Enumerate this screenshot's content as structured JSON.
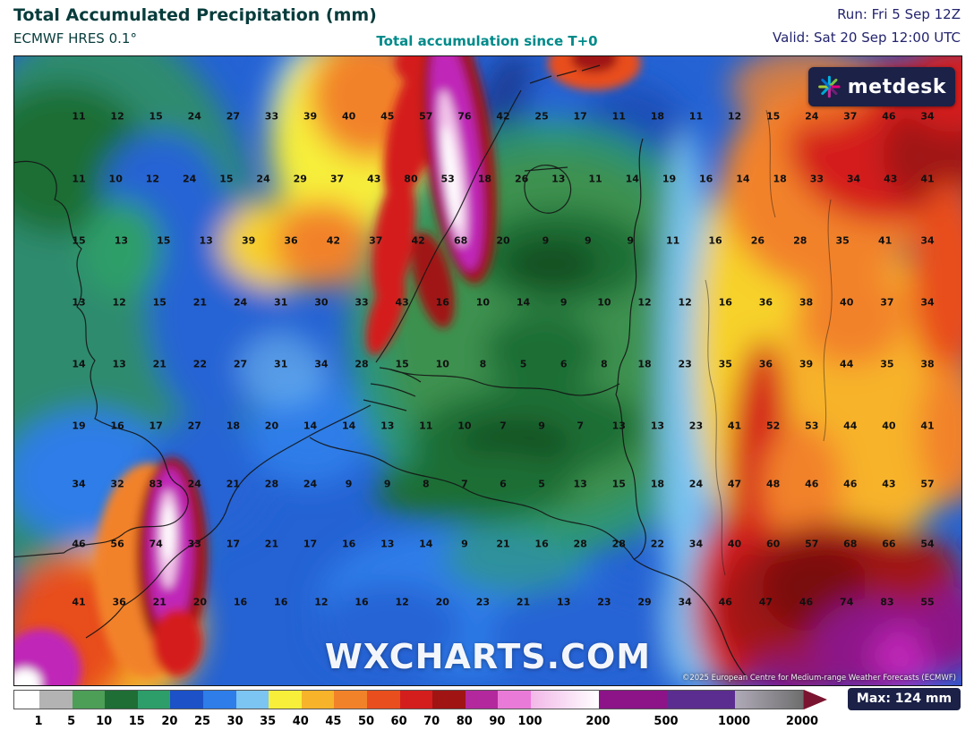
{
  "header": {
    "title": "Total Accumulated Precipitation (mm)",
    "model": "ECMWF HRES 0.1°",
    "subtitle": "Total accumulation since T+0",
    "run": "Run: Fri 5 Sep 12Z",
    "valid": "Valid: Sat 20 Sep 12:00 UTC"
  },
  "branding": {
    "logo_text": "metdesk",
    "watermark": "WXCHARTS.COM",
    "copyright": "©2025 European Centre for Medium-range Weather Forecasts (ECMWF)"
  },
  "colors": {
    "title_teal": "#083c3c",
    "subtitle_teal": "#008a8a",
    "run_navy": "#23246e",
    "badge_navy": "#1b2147",
    "map_base_blue": "#2563d4"
  },
  "chart_data": {
    "type": "heatmap",
    "title": "Total Accumulated Precipitation (mm)",
    "units": "mm",
    "model": "ECMWF HRES 0.1°",
    "run": "Fri 5 Sep 12Z",
    "valid_time": "Sat 20 Sep 12:00 UTC",
    "max_value_mm": 124,
    "grid_rows": [
      [
        11,
        12,
        15,
        24,
        27,
        33,
        39,
        40,
        45,
        57,
        76,
        42,
        25,
        17,
        11,
        18,
        11,
        12,
        15,
        24,
        37,
        46,
        34
      ],
      [
        11,
        10,
        12,
        24,
        15,
        24,
        29,
        37,
        43,
        80,
        53,
        18,
        26,
        13,
        11,
        14,
        19,
        16,
        14,
        18,
        33,
        34,
        43,
        41
      ],
      [
        15,
        13,
        15,
        13,
        39,
        36,
        42,
        37,
        42,
        68,
        20,
        9,
        9,
        9,
        11,
        16,
        26,
        28,
        35,
        41,
        34
      ],
      [
        13,
        12,
        15,
        21,
        24,
        31,
        30,
        33,
        43,
        16,
        10,
        14,
        9,
        10,
        12,
        12,
        16,
        36,
        38,
        40,
        37,
        34
      ],
      [
        14,
        13,
        21,
        22,
        27,
        31,
        34,
        28,
        15,
        10,
        8,
        5,
        6,
        8,
        18,
        23,
        35,
        36,
        39,
        44,
        35,
        38
      ],
      [
        19,
        16,
        17,
        27,
        18,
        20,
        14,
        14,
        13,
        11,
        10,
        7,
        9,
        7,
        13,
        13,
        23,
        41,
        52,
        53,
        44,
        40,
        41
      ],
      [
        34,
        32,
        83,
        24,
        21,
        28,
        24,
        9,
        9,
        8,
        7,
        6,
        5,
        13,
        15,
        18,
        24,
        47,
        48,
        46,
        46,
        43,
        57
      ],
      [
        46,
        56,
        74,
        33,
        17,
        21,
        17,
        16,
        13,
        14,
        9,
        21,
        16,
        28,
        28,
        22,
        34,
        40,
        60,
        57,
        68,
        66,
        54
      ],
      [
        41,
        36,
        21,
        20,
        16,
        16,
        12,
        16,
        12,
        20,
        23,
        21,
        13,
        23,
        29,
        34,
        46,
        47,
        46,
        74,
        83,
        55
      ]
    ]
  },
  "colorbar": {
    "ticks": [
      "1",
      "5",
      "10",
      "15",
      "20",
      "25",
      "30",
      "35",
      "40",
      "45",
      "50",
      "60",
      "70",
      "80",
      "90",
      "100",
      "200",
      "500",
      "1000",
      "2000"
    ],
    "segments": [
      {
        "color": "#ffffff"
      },
      {
        "color": "#b3b3b3"
      },
      {
        "color": "#4d9e57"
      },
      {
        "color": "#1f6e35"
      },
      {
        "color": "#2d9e69"
      },
      {
        "color": "#1c51c8"
      },
      {
        "color": "#2e7de8"
      },
      {
        "color": "#7cc4f2"
      },
      {
        "color": "#f7ef3a"
      },
      {
        "color": "#f7b32a"
      },
      {
        "color": "#f2822a"
      },
      {
        "color": "#e84e1e"
      },
      {
        "color": "#d41e1e"
      },
      {
        "color": "#a01414"
      },
      {
        "color": "#b4289e"
      },
      {
        "color": "#ea7ad8"
      },
      {
        "gradient": [
          "#f2b8e8",
          "#ffffff"
        ]
      },
      {
        "color": "#8c1488"
      },
      {
        "color": "#5c2d91"
      },
      {
        "gradient": [
          "#b0aab8",
          "#6e6e6e"
        ]
      }
    ],
    "arrow_color": "#7a1430",
    "max_label": "Max: 124 mm"
  }
}
